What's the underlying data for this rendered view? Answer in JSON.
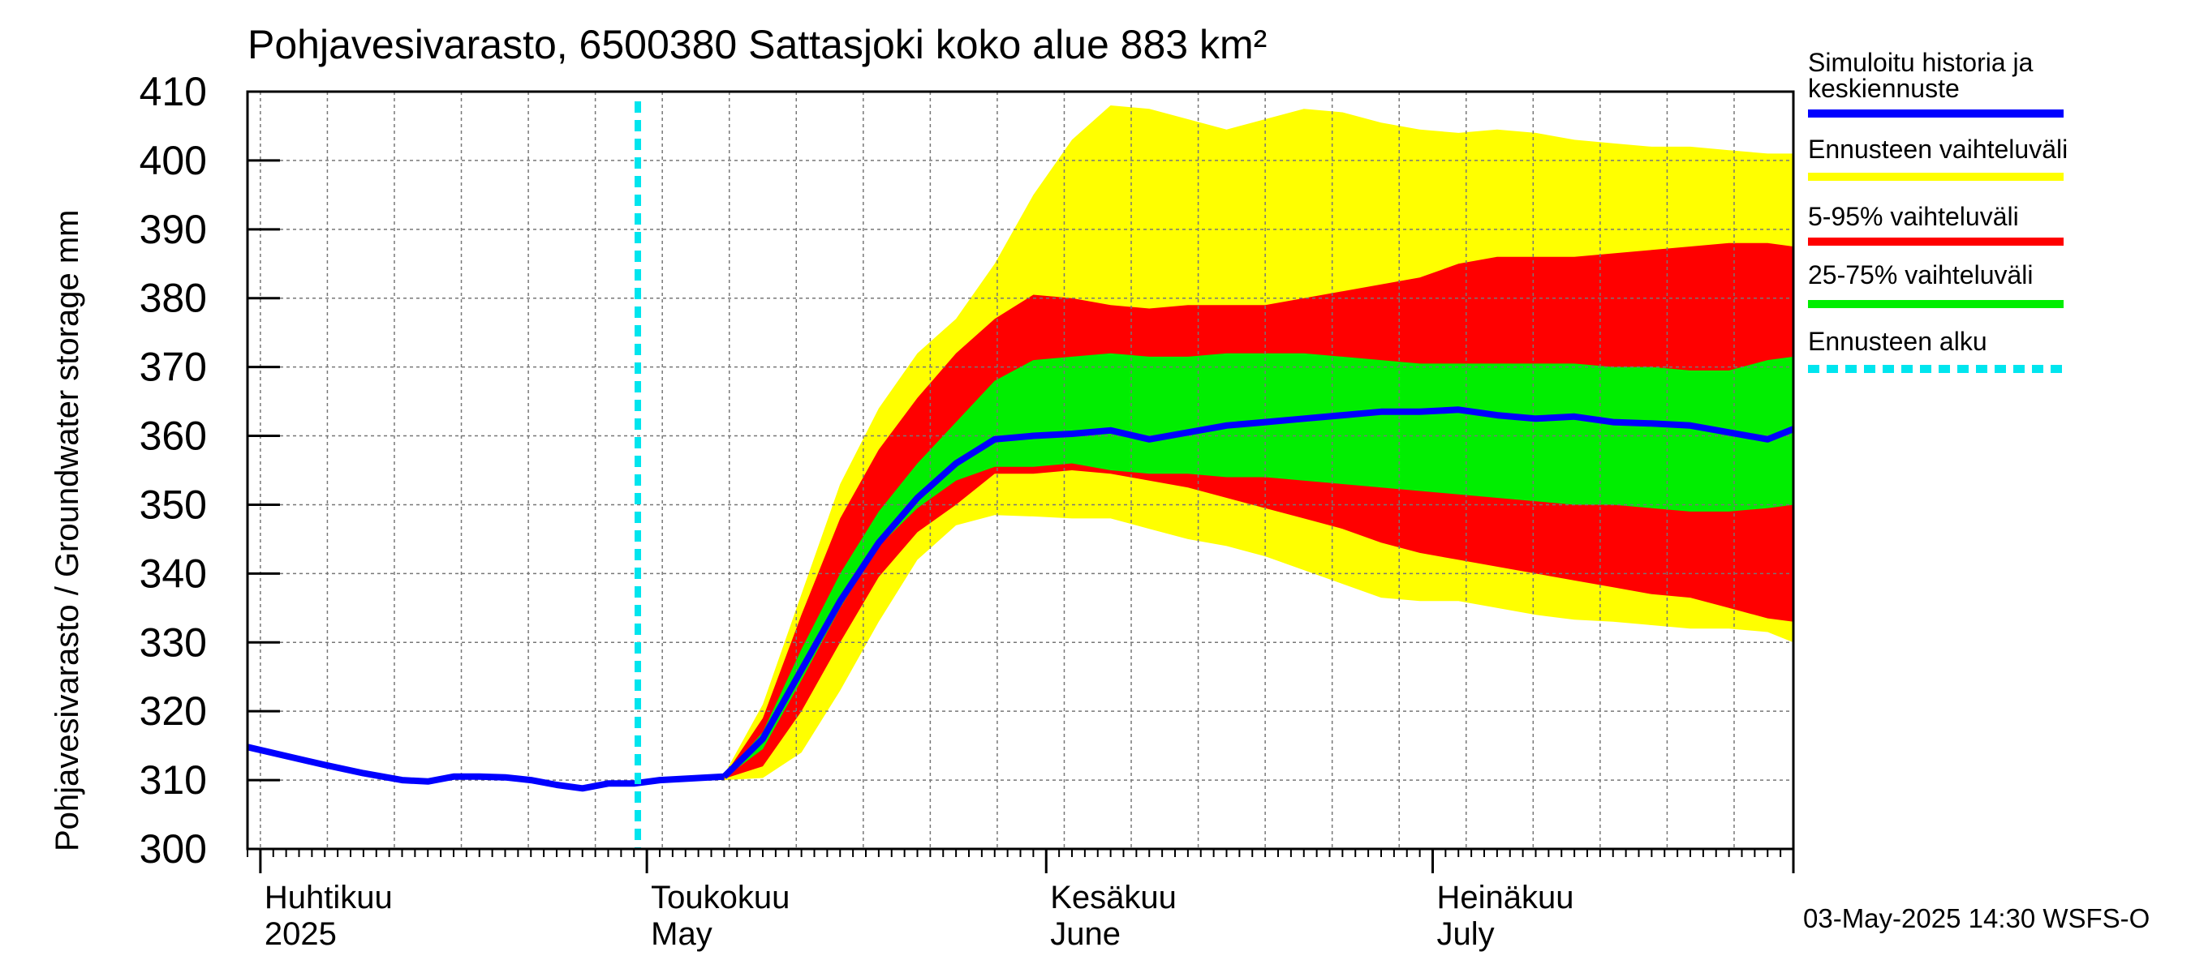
{
  "title": "Pohjavesivarasto, 6500380 Sattasjoki koko alue 883 km²",
  "ylabel": "Pohjavesivarasto / Groundwater storage   mm",
  "timestamp": "03-May-2025 14:30 WSFS-O",
  "legend": [
    {
      "label": "Simuloitu historia ja",
      "label2": "keskiennuste",
      "color": "#0000ff",
      "style": "solid"
    },
    {
      "label": "Ennusteen vaihteluväli",
      "label2": "",
      "color": "#ffff00",
      "style": "solid"
    },
    {
      "label": "5-95% vaihteluväli",
      "label2": "",
      "color": "#ff0000",
      "style": "solid"
    },
    {
      "label": "25-75% vaihteluväli",
      "label2": "",
      "color": "#00ee00",
      "style": "solid"
    },
    {
      "label": "Ennusteen alku",
      "label2": "",
      "color": "#00e5ee",
      "style": "dashed"
    }
  ],
  "month_labels": [
    {
      "fi": "Huhtikuu",
      "en": "2025",
      "day": 1
    },
    {
      "fi": "Toukokuu",
      "en": "May",
      "day": 31
    },
    {
      "fi": "Kesäkuu",
      "en": "June",
      "day": 62
    },
    {
      "fi": "Heinäkuu",
      "en": "July",
      "day": 92
    }
  ],
  "chart_data": {
    "type": "area",
    "x_unit": "days since 2025-03-31",
    "xlim": [
      0,
      120
    ],
    "ylim": [
      300,
      410
    ],
    "yticks": [
      300,
      310,
      320,
      330,
      340,
      350,
      360,
      370,
      380,
      390,
      400,
      410
    ],
    "month_start_days": [
      1,
      31,
      62,
      92,
      120
    ],
    "forecast_start_day": 30.3,
    "colors": {
      "range": "#ffff00",
      "p5_95": "#ff0000",
      "p25_75": "#00ee00",
      "median": "#0000ff",
      "forecast_start": "#00e5ee"
    },
    "x": [
      0,
      14,
      20,
      25,
      30,
      34,
      37,
      40,
      43,
      46,
      49,
      52,
      55,
      58,
      61,
      64,
      67,
      70,
      73,
      76,
      79,
      82,
      85,
      88,
      91,
      94,
      97,
      100,
      103,
      106,
      109,
      112,
      115,
      118,
      120
    ],
    "history": {
      "x": [
        0,
        3,
        6,
        9,
        12,
        14,
        16,
        18,
        20,
        22,
        24,
        26,
        28,
        30,
        32,
        34,
        37
      ],
      "y": [
        314.8,
        313.5,
        312.2,
        311,
        310,
        309.8,
        310.5,
        310.5,
        310.4,
        310,
        309.3,
        308.8,
        309.5,
        309.5,
        310,
        310.2,
        310.5
      ]
    },
    "median": [
      null,
      null,
      null,
      null,
      null,
      null,
      310.5,
      316,
      326,
      336,
      344.5,
      351,
      356,
      359.5,
      360,
      360.3,
      360.8,
      359.5,
      360.5,
      361.5,
      362,
      362.5,
      363,
      363.5,
      363.5,
      363.8,
      363,
      362.5,
      362.8,
      362,
      361.8,
      361.5,
      360.5,
      359.5,
      361
    ],
    "range_low": [
      null,
      null,
      null,
      null,
      null,
      null,
      310,
      310.3,
      314,
      323,
      333,
      342,
      347,
      348.5,
      348.3,
      348,
      348,
      346.5,
      345,
      344,
      342.5,
      340.5,
      338.5,
      336.5,
      336,
      336,
      335,
      334,
      333.3,
      333,
      332.5,
      332,
      332,
      331.5,
      330
    ],
    "range_high": [
      null,
      null,
      null,
      null,
      null,
      null,
      310.8,
      321,
      337,
      353,
      364,
      372,
      377,
      385,
      395,
      403,
      408,
      407.5,
      406,
      404.5,
      406,
      407.5,
      407,
      405.5,
      404.5,
      404,
      404.5,
      404,
      403,
      402.5,
      402,
      402,
      401.5,
      401,
      401
    ],
    "p5_low": [
      null,
      null,
      null,
      null,
      null,
      null,
      310.2,
      312,
      320,
      330,
      339.5,
      346,
      350,
      354.5,
      354.5,
      355,
      354.5,
      353.5,
      352.5,
      351,
      349.5,
      348,
      346.5,
      344.5,
      343,
      342,
      341,
      340,
      339,
      338,
      337,
      336.5,
      335,
      333.5,
      333
    ],
    "p5_high": [
      null,
      null,
      null,
      null,
      null,
      null,
      310.6,
      319,
      334,
      348,
      358,
      365.5,
      372,
      377,
      380.5,
      380,
      379,
      378.5,
      379,
      379,
      379,
      380,
      381,
      382,
      383,
      385,
      386,
      386,
      386,
      386.5,
      387,
      387.5,
      388,
      388,
      387.5
    ],
    "p25_low": [
      null,
      null,
      null,
      null,
      null,
      null,
      310.3,
      314.5,
      324.5,
      335,
      344,
      349.5,
      353.5,
      355.5,
      355.5,
      356,
      355,
      354.5,
      354.5,
      354,
      354,
      353.5,
      353,
      352.5,
      352,
      351.5,
      351,
      350.5,
      350,
      350,
      349.5,
      349,
      349,
      349.5,
      350
    ],
    "p25_high": [
      null,
      null,
      null,
      null,
      null,
      null,
      310.5,
      317,
      329,
      340,
      349,
      356,
      362,
      368,
      371,
      371.5,
      372,
      371.5,
      371.5,
      372,
      372,
      372,
      371.5,
      371,
      370.5,
      370.5,
      370.5,
      370.5,
      370.5,
      370,
      370,
      369.5,
      369.5,
      371,
      371.5
    ]
  }
}
